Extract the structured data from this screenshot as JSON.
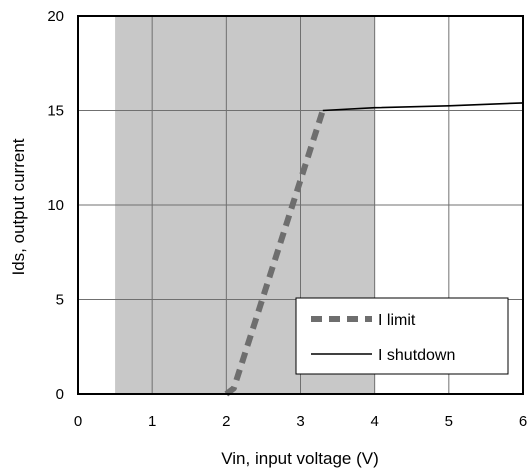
{
  "chart_data": {
    "type": "line",
    "title": "",
    "xlabel": "Vin, input voltage (V)",
    "ylabel": "Ids, output current",
    "xlim": [
      0,
      6
    ],
    "ylim": [
      0,
      20
    ],
    "x_ticks": [
      0,
      1,
      2,
      3,
      4,
      5,
      6
    ],
    "y_ticks": [
      0,
      5,
      10,
      15,
      20
    ],
    "x_tick_labels": [
      "0",
      "1",
      "2",
      "3",
      "4",
      "5",
      "6"
    ],
    "y_tick_labels": [
      "0",
      "5",
      "10",
      "15",
      "20"
    ],
    "grid": true,
    "shaded_region": {
      "x": [
        0.5,
        4.0
      ],
      "color": "#c8c8c8"
    },
    "legend": {
      "placement": "bottom-right"
    },
    "series": [
      {
        "name": "I limit",
        "style": "dashed",
        "color": "#6e6e6e",
        "x": [
          2.0,
          2.1,
          3.3
        ],
        "y": [
          0,
          0.3,
          15.0
        ]
      },
      {
        "name": "I shutdown",
        "style": "solid",
        "color": "#000000",
        "x": [
          3.3,
          4.0,
          5.0,
          6.0
        ],
        "y": [
          15.0,
          15.15,
          15.25,
          15.4
        ]
      }
    ]
  }
}
